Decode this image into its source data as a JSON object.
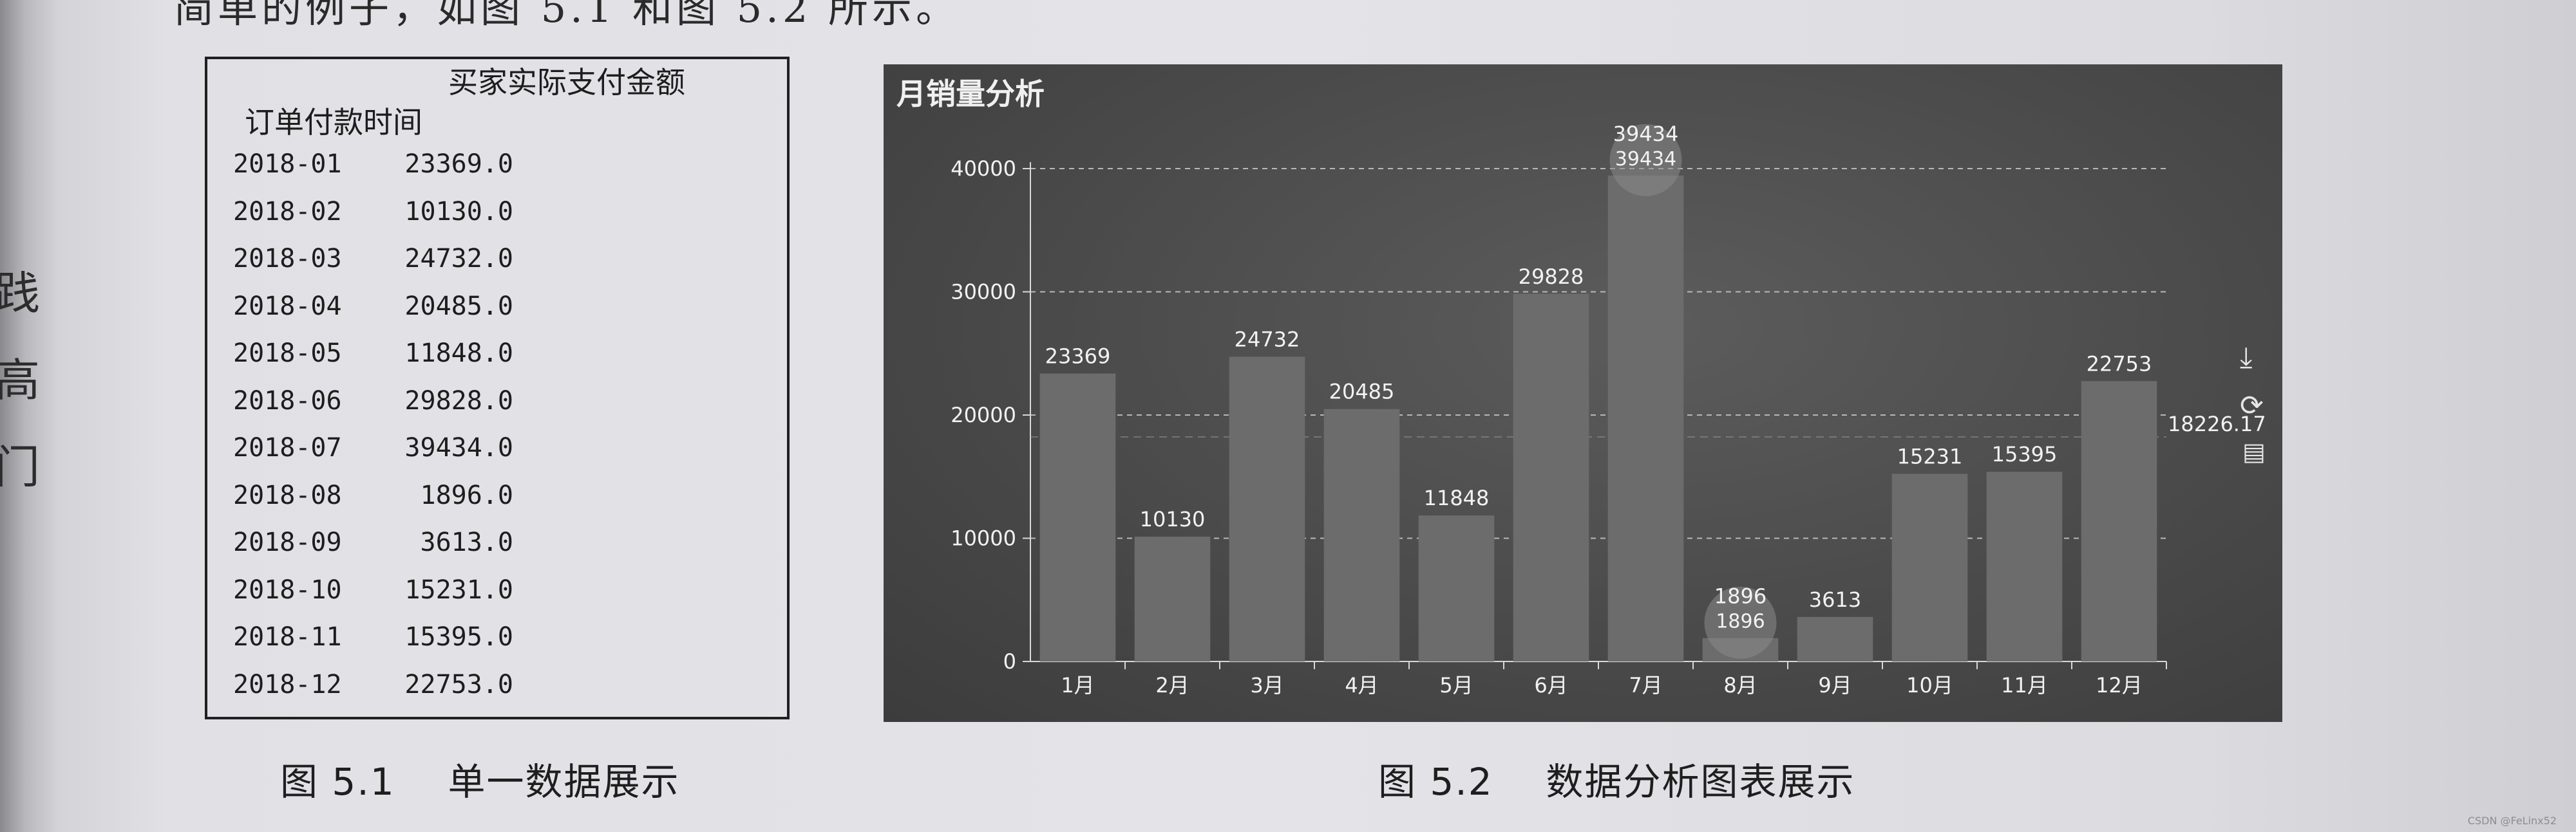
{
  "page": {
    "top_text": "简单的例子，如图 5.1 和图 5.2 所示。",
    "margin_chars": [
      "践",
      "高",
      "门"
    ]
  },
  "table": {
    "column_header": "买家实际支付金额",
    "index_header": "订单付款时间",
    "rows": [
      {
        "date": "2018-01",
        "value": "23369.0"
      },
      {
        "date": "2018-02",
        "value": "10130.0"
      },
      {
        "date": "2018-03",
        "value": "24732.0"
      },
      {
        "date": "2018-04",
        "value": "20485.0"
      },
      {
        "date": "2018-05",
        "value": "11848.0"
      },
      {
        "date": "2018-06",
        "value": "29828.0"
      },
      {
        "date": "2018-07",
        "value": "39434.0"
      },
      {
        "date": "2018-08",
        "value": "1896.0"
      },
      {
        "date": "2018-09",
        "value": "3613.0"
      },
      {
        "date": "2018-10",
        "value": "15231.0"
      },
      {
        "date": "2018-11",
        "value": "15395.0"
      },
      {
        "date": "2018-12",
        "value": "22753.0"
      }
    ]
  },
  "captions": {
    "fig1_num": "图 5.1",
    "fig1_text": "单一数据展示",
    "fig2_num": "图 5.2",
    "fig2_text": "数据分析图表展示"
  },
  "chart_data": {
    "type": "bar",
    "title": "月销量分析",
    "categories": [
      "1月",
      "2月",
      "3月",
      "4月",
      "5月",
      "6月",
      "7月",
      "8月",
      "9月",
      "10月",
      "11月",
      "12月"
    ],
    "values": [
      23369,
      10130,
      24732,
      20485,
      11848,
      29828,
      39434,
      1896,
      3613,
      15231,
      15395,
      22753
    ],
    "yticks": [
      "0",
      "10000",
      "20000",
      "30000",
      "40000"
    ],
    "ylim": [
      0,
      40000
    ],
    "grid": true,
    "mark_point": {
      "max": "39434",
      "min": "1896"
    },
    "mark_line_average": "18226.17",
    "colors": {
      "background": "#4a4a4a",
      "bar": "#6c6c6c",
      "text": "#f2f2f2"
    },
    "toolbox_icons": [
      "download-icon",
      "refresh-icon",
      "data-view-icon"
    ]
  },
  "watermark": "CSDN @FeLinx52"
}
